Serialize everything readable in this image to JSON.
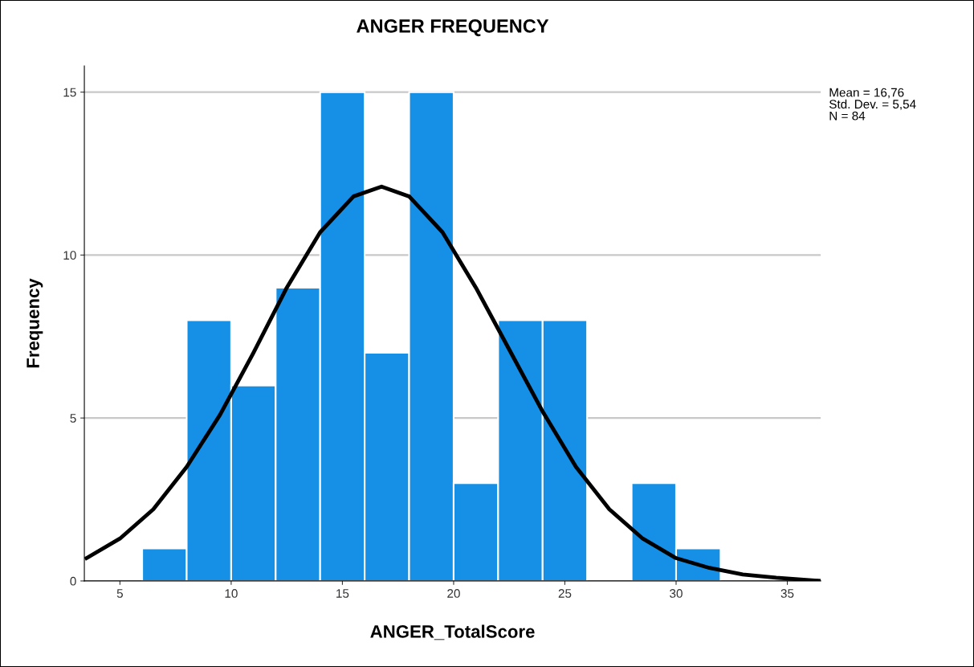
{
  "chart_data": {
    "type": "histogram",
    "title": "ANGER FREQUENCY",
    "xlabel": "ANGER_TotalScore",
    "ylabel": "Frequency",
    "bins": [
      6,
      8,
      10,
      12,
      14,
      16,
      18,
      20,
      22,
      24,
      26,
      28,
      30,
      32
    ],
    "values": [
      1,
      8,
      6,
      9,
      15,
      7,
      15,
      3,
      8,
      8,
      0,
      3,
      1
    ],
    "color": "#1590e6",
    "series": [
      {
        "type": "line",
        "color": "#000000",
        "x": [
          3.5,
          5,
          6.5,
          8,
          9.5,
          11,
          12.5,
          14,
          15.5,
          16.76,
          18,
          19.5,
          21,
          22.5,
          24,
          25.5,
          27,
          28.5,
          30,
          31.5,
          33,
          34.5,
          36.5
        ],
        "values": [
          0.7,
          1.3,
          2.2,
          3.5,
          5.1,
          7.0,
          9.0,
          10.7,
          11.8,
          12.1,
          11.8,
          10.7,
          9.0,
          7.1,
          5.2,
          3.5,
          2.2,
          1.3,
          0.7,
          0.4,
          0.2,
          0.1,
          0.0
        ]
      }
    ],
    "xlim": [
      3.4,
      36.5
    ],
    "xticks": [
      5,
      10,
      15,
      20,
      25,
      30,
      35
    ],
    "ylim": [
      0,
      15.8
    ],
    "yticks": [
      0,
      5,
      10,
      15
    ],
    "grid": "y",
    "annotations": [
      "Mean = 16,76",
      "Std. Dev. = 5,54",
      "N = 84"
    ]
  }
}
